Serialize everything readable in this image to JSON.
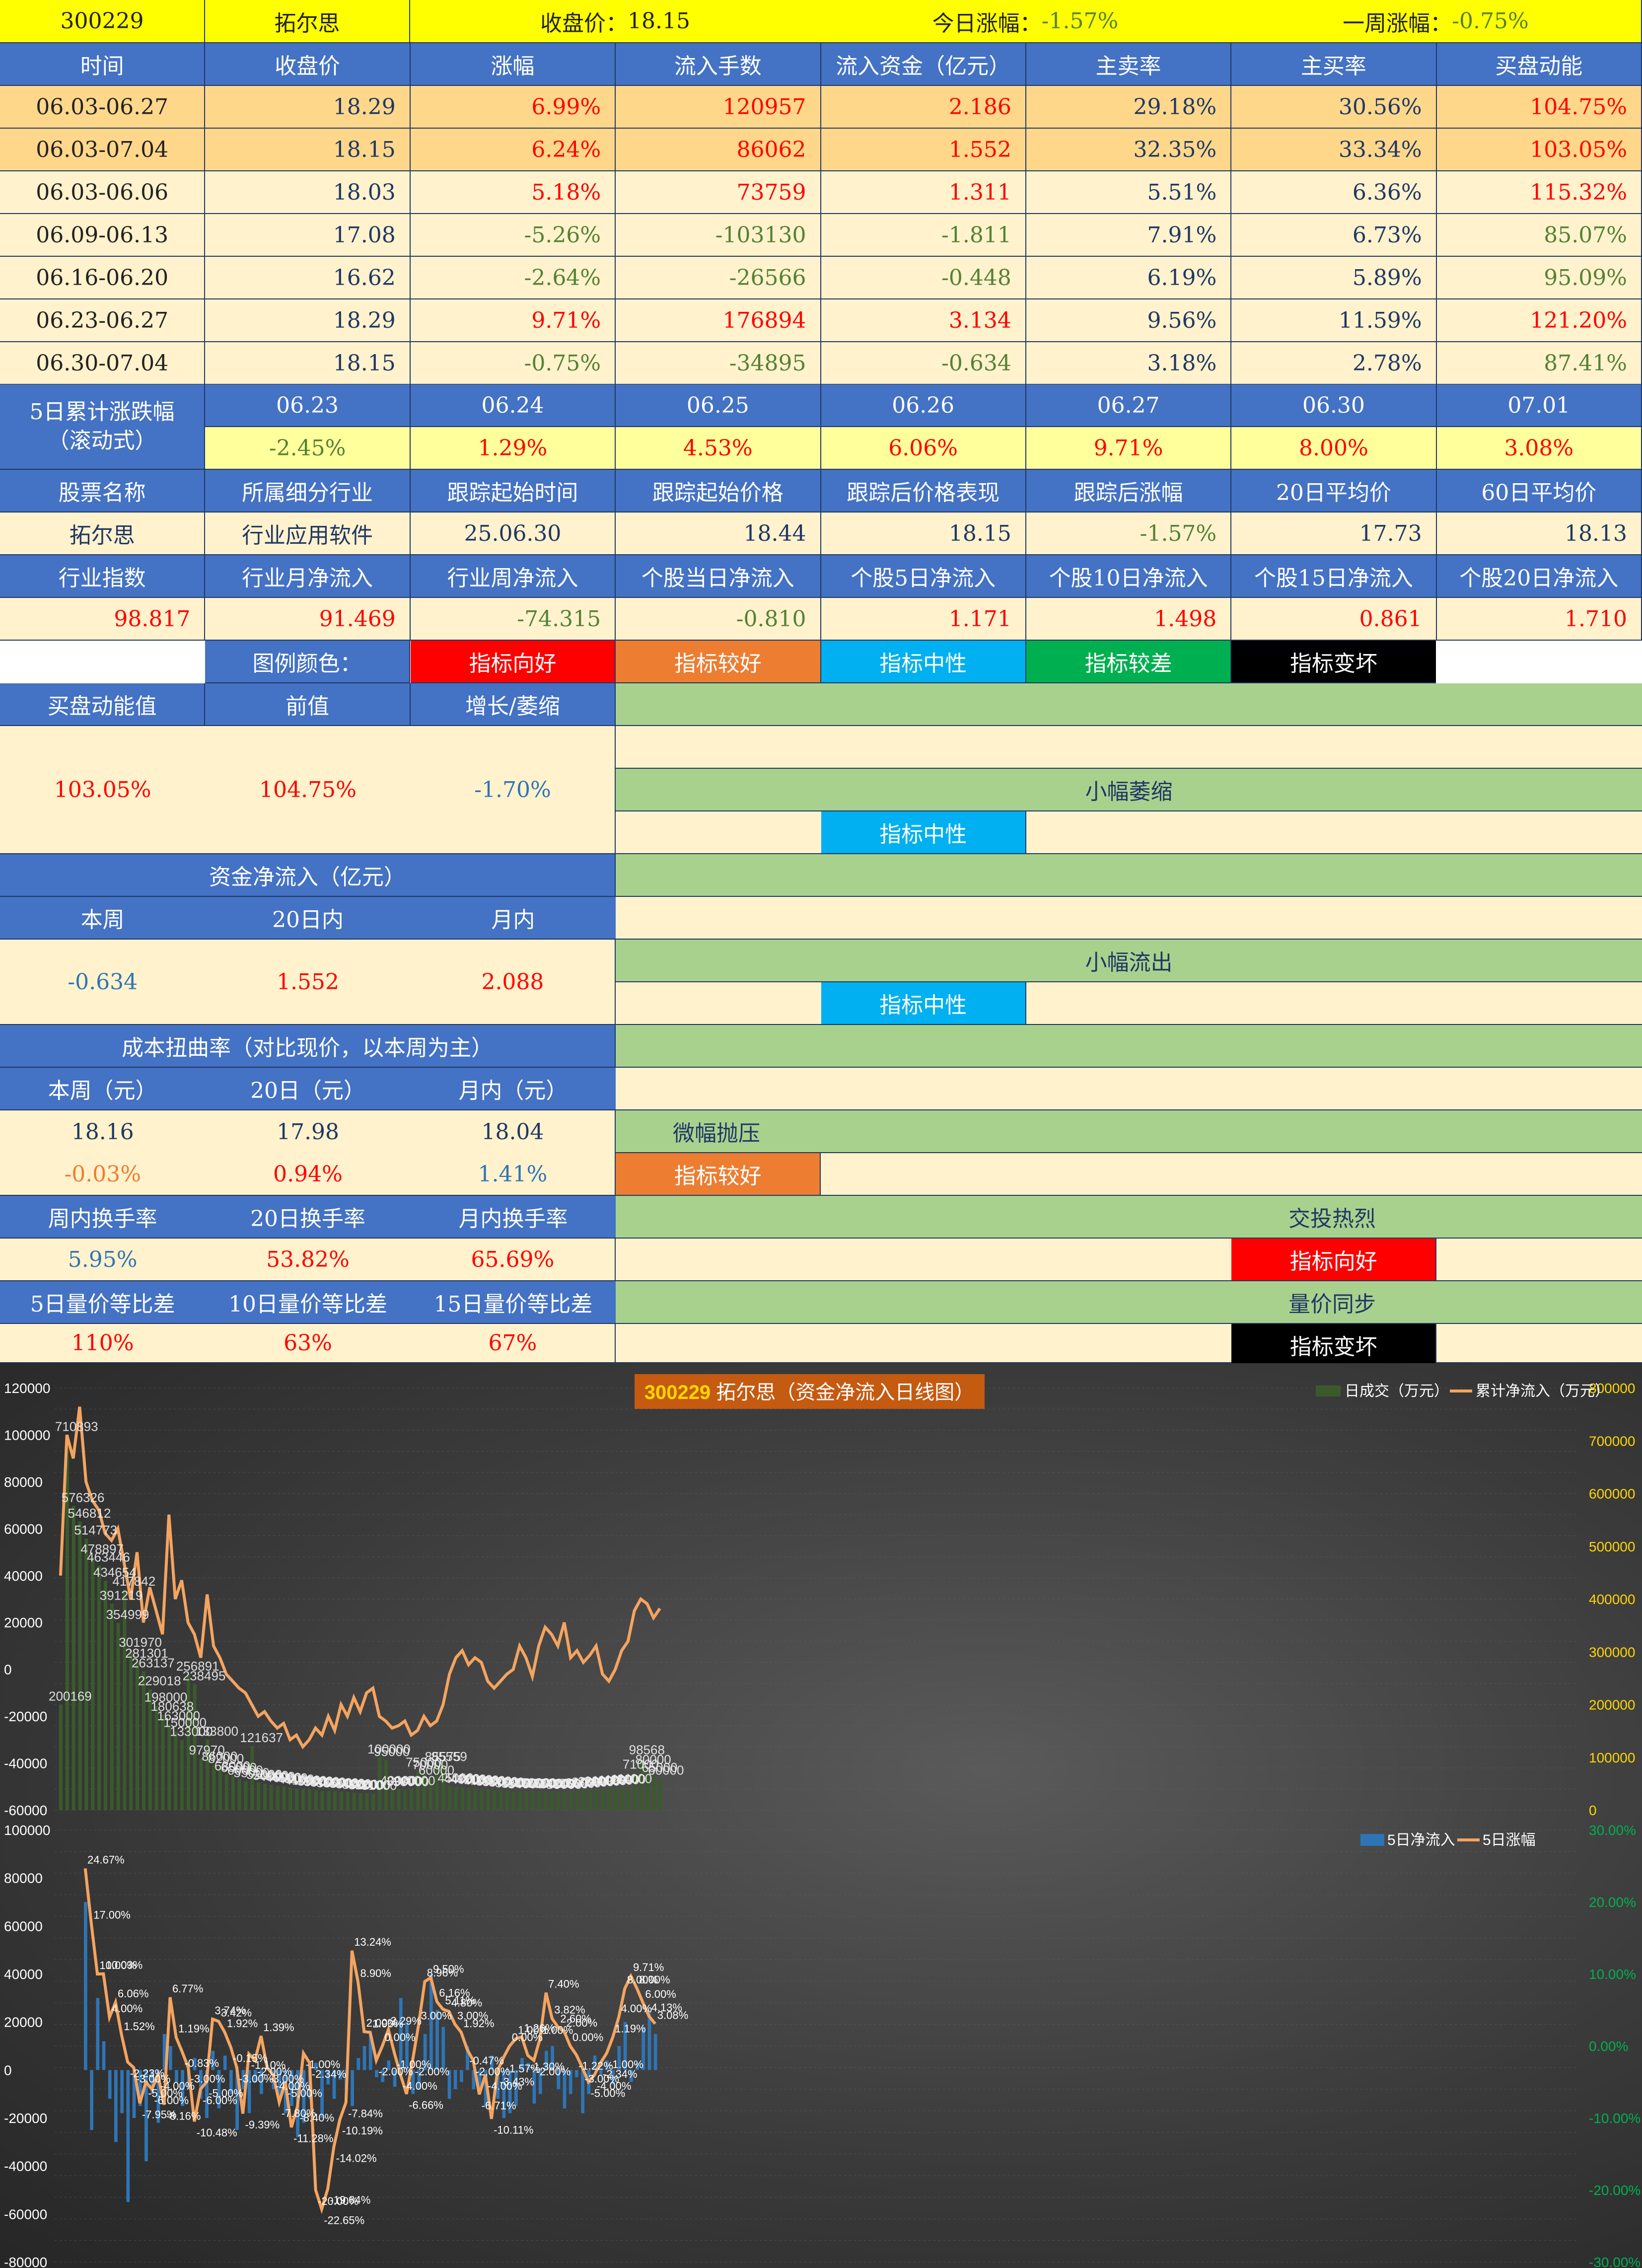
{
  "header": {
    "code": "300229",
    "name": "拓尔思",
    "close_label": "收盘价：",
    "close_value": "18.15",
    "day_label": "今日涨幅：",
    "day_value": "-1.57%",
    "week_label": "一周涨幅：",
    "week_value": "-0.75%"
  },
  "weekly": {
    "columns": [
      "时间",
      "收盘价",
      "涨幅",
      "流入手数",
      "流入资金（亿元）",
      "主卖率",
      "主买率",
      "买盘动能"
    ],
    "rows": [
      [
        "06.03-06.27",
        "18.29",
        "6.99%",
        "120957",
        "2.186",
        "29.18%",
        "30.56%",
        "104.75%"
      ],
      [
        "06.03-07.04",
        "18.15",
        "6.24%",
        "86062",
        "1.552",
        "32.35%",
        "33.34%",
        "103.05%"
      ],
      [
        "06.03-06.06",
        "18.03",
        "5.18%",
        "73759",
        "1.311",
        "5.51%",
        "6.36%",
        "115.32%"
      ],
      [
        "06.09-06.13",
        "17.08",
        "-5.26%",
        "-103130",
        "-1.811",
        "7.91%",
        "6.73%",
        "85.07%"
      ],
      [
        "06.16-06.20",
        "16.62",
        "-2.64%",
        "-26566",
        "-0.448",
        "6.19%",
        "5.89%",
        "95.09%"
      ],
      [
        "06.23-06.27",
        "18.29",
        "9.71%",
        "176894",
        "3.134",
        "9.56%",
        "11.59%",
        "121.20%"
      ],
      [
        "06.30-07.04",
        "18.15",
        "-0.75%",
        "-34895",
        "-0.634",
        "3.18%",
        "2.78%",
        "87.41%"
      ]
    ]
  },
  "rolling": {
    "label_line1": "5日累计涨跌幅",
    "label_line2": "（滚动式）",
    "dates": [
      "06.23",
      "06.24",
      "06.25",
      "06.26",
      "06.27",
      "06.30",
      "07.01"
    ],
    "values": [
      "-2.45%",
      "1.29%",
      "4.53%",
      "6.06%",
      "9.71%",
      "8.00%",
      "3.08%"
    ]
  },
  "info": {
    "headers": [
      "股票名称",
      "所属细分行业",
      "跟踪起始时间",
      "跟踪起始价格",
      "跟踪后价格表现",
      "跟踪后涨幅",
      "20日平均价",
      "60日平均价"
    ],
    "values": [
      "拓尔思",
      "行业应用软件",
      "25.06.30",
      "18.44",
      "18.15",
      "-1.57%",
      "17.73",
      "18.13"
    ]
  },
  "flows": {
    "headers": [
      "行业指数",
      "行业月净流入",
      "行业周净流入",
      "个股当日净流入",
      "个股5日净流入",
      "个股10日净流入",
      "个股15日净流入",
      "个股20日净流入"
    ],
    "values": [
      "98.817",
      "91.469",
      "-74.315",
      "-0.810",
      "1.171",
      "1.498",
      "0.861",
      "1.710"
    ]
  },
  "legend": {
    "title": "图例颜色：",
    "items": [
      {
        "label": "指标向好",
        "color": "#ff0000"
      },
      {
        "label": "指标较好",
        "color": "#ed7d31"
      },
      {
        "label": "指标中性",
        "color": "#00b0f0"
      },
      {
        "label": "指标较差",
        "color": "#00b050"
      },
      {
        "label": "指标变坏",
        "color": "#000000"
      }
    ]
  },
  "momentum": {
    "headers": [
      "买盘动能值",
      "前值",
      "增长/萎缩"
    ],
    "values": [
      "103.05%",
      "104.75%",
      "-1.70%"
    ],
    "status": "小幅萎缩",
    "tag": "指标中性"
  },
  "capital": {
    "title": "资金净流入（亿元）",
    "headers": [
      "本周",
      "20日内",
      "月内"
    ],
    "values": [
      "-0.634",
      "1.552",
      "2.088"
    ],
    "status": "小幅流出",
    "tag": "指标中性"
  },
  "cost": {
    "title": "成本扭曲率（对比现价，以本周为主）",
    "headers": [
      "本周（元）",
      "20日（元）",
      "月内（元）"
    ],
    "values": [
      "18.16",
      "17.98",
      "18.04"
    ],
    "pcts": [
      "-0.03%",
      "0.94%",
      "1.41%"
    ],
    "status": "微幅抛压",
    "tag": "指标较好"
  },
  "turnover": {
    "headers": [
      "周内换手率",
      "20日换手率",
      "月内换手率"
    ],
    "values": [
      "5.95%",
      "53.82%",
      "65.69%"
    ],
    "status": "交投热烈",
    "tag": "指标向好"
  },
  "volprice": {
    "headers": [
      "5日量价等比差",
      "10日量价等比差",
      "15日量价等比差"
    ],
    "values": [
      "110%",
      "63%",
      "67%"
    ],
    "status": "量价同步",
    "tag": "指标变坏"
  },
  "chart1": {
    "title_code": "300229",
    "title_rest": "拓尔思（资金净流入日线图）",
    "legend": [
      "日成交（万元）",
      "累计净流入（万元）"
    ]
  },
  "chart2": {
    "legend": [
      "5日净流入",
      "5日涨幅"
    ]
  },
  "chart_data": [
    {
      "type": "bar",
      "title": "300229 拓尔思（资金净流入日线图）",
      "left_axis": {
        "min": -60000,
        "max": 120000,
        "ticks": [
          "120000",
          "100000",
          "80000",
          "60000",
          "40000",
          "20000",
          "0",
          "-20000",
          "-40000",
          "-60000"
        ]
      },
      "right_axis": {
        "min": 0,
        "max": 800000,
        "ticks": [
          "800000",
          "700000",
          "600000",
          "500000",
          "400000",
          "300000",
          "200000",
          "100000",
          "0"
        ]
      },
      "series": [
        {
          "name": "日成交（万元）",
          "axis": "right",
          "values": [
            200169,
            710893,
            576326,
            546812,
            514773,
            478897,
            463446,
            434654,
            391219,
            354999,
            417842,
            301970,
            281301,
            263137,
            229018,
            198000,
            180638,
            163000,
            150000,
            133000,
            256891,
            238495,
            97970,
            133800,
            86000,
            82000,
            68000,
            65000,
            60000,
            55000,
            121637,
            52000,
            50000,
            48000,
            46000,
            45000,
            43000,
            41000,
            40000,
            39000,
            38000,
            37000,
            36000,
            36000,
            35000,
            34000,
            33000,
            32000,
            32000,
            31000,
            100000,
            95000,
            40000,
            39000,
            38000,
            40000,
            75000,
            70000,
            60000,
            85575,
            85559,
            45000,
            44000,
            43000,
            42000,
            41000,
            40000,
            39000,
            38000,
            37000,
            36000,
            35000,
            34000,
            36000,
            36000,
            35000,
            35000,
            34000,
            33000,
            34000,
            35000,
            36000,
            37000,
            38000,
            39000,
            40000,
            41000,
            42000,
            43000,
            44000,
            71000,
            98568,
            80000,
            65000,
            60000
          ]
        },
        {
          "name": "累计净流入（万元）",
          "axis": "left",
          "values": [
            40000,
            100000,
            90000,
            112000,
            80000,
            72000,
            68000,
            58000,
            55000,
            60000,
            45000,
            30000,
            50000,
            20000,
            35000,
            25000,
            15000,
            66000,
            30000,
            38000,
            20000,
            15000,
            5000,
            32000,
            10000,
            5000,
            -2000,
            -5000,
            -8000,
            -10000,
            -15000,
            -20000,
            -18000,
            -22000,
            -25000,
            -23000,
            -30000,
            -28000,
            -33000,
            -30000,
            -25000,
            -28000,
            -20000,
            -26000,
            -15000,
            -20000,
            -12000,
            -18000,
            -10000,
            -8000,
            -20000,
            -22000,
            -25000,
            -24000,
            -22000,
            -28000,
            -26000,
            -20000,
            -24000,
            -22000,
            -15000,
            -2000,
            5000,
            8000,
            2000,
            5000,
            3000,
            -5000,
            -8000,
            -5000,
            -2000,
            0,
            10000,
            5000,
            -3000,
            10000,
            18000,
            15000,
            10000,
            20000,
            5000,
            8000,
            3000,
            6000,
            10000,
            -2000,
            -5000,
            0,
            8000,
            12000,
            25000,
            30000,
            28000,
            22000,
            26000
          ]
        }
      ]
    },
    {
      "type": "bar",
      "left_axis": {
        "min": -80000,
        "max": 100000,
        "ticks": [
          "100000",
          "80000",
          "60000",
          "40000",
          "20000",
          "0",
          "-20000",
          "-40000",
          "-60000",
          "-80000"
        ]
      },
      "right_axis": {
        "min": -30,
        "max": 30,
        "ticks": [
          "30.00%",
          "20.00%",
          "10.00%",
          "0.00%",
          "-10.00%",
          "-20.00%",
          "-30.00%"
        ]
      },
      "series": [
        {
          "name": "5日净流入",
          "axis": "left",
          "values": [
            70000,
            -25000,
            30000,
            12000,
            -12000,
            -30000,
            -18000,
            -55000,
            -20000,
            -15000,
            -38000,
            -10000,
            -22000,
            15000,
            10000,
            -5000,
            -15000,
            -8000,
            5000,
            -12000,
            -20000,
            8000,
            -16000,
            6000,
            -10000,
            -25000,
            -8000,
            -18000,
            -5000,
            -10000,
            2000,
            -8000,
            -12000,
            -18000,
            -15000,
            -28000,
            -22000,
            -12000,
            3000,
            -20000,
            -6000,
            -12000,
            -4000,
            -8000,
            -15000,
            5000,
            10000,
            15000,
            -3000,
            -5000,
            4000,
            -7000,
            30000,
            20000,
            -10000,
            -8000,
            15000,
            40000,
            25000,
            18000,
            -12000,
            -8000,
            -5000,
            10000,
            -8000,
            -10000,
            -15000,
            6000,
            -12000,
            -20000,
            -18000,
            -15000,
            5000,
            3000,
            -14000,
            -10000,
            8000,
            10000,
            -8000,
            -16000,
            -10000,
            -3000,
            -18000,
            -10000,
            6000,
            -2000,
            4000,
            -6000,
            10000,
            20000,
            -5000,
            3000,
            18000,
            25000,
            15000
          ]
        },
        {
          "name": "5日涨幅",
          "axis": "right",
          "values": [
            24.67,
            17,
            10,
            10.03,
            4,
            6.06,
            1.52,
            -2.23,
            -3,
            -7.95,
            -5,
            -6,
            -4,
            -8.16,
            6.77,
            1.19,
            -0.83,
            -3,
            -10.48,
            -6,
            -5,
            3.74,
            3.42,
            1.92,
            -0.15,
            -3,
            -9.39,
            -1.1,
            -2,
            1.39,
            -3,
            -4,
            -7.8,
            -5,
            -11.28,
            -8.4,
            -1,
            -2.34,
            -20,
            -22.65,
            -19.84,
            -14.02,
            -10.19,
            -7.84,
            13.24,
            8.9,
            2,
            1.9,
            -2,
            0,
            2.29,
            -1,
            -4,
            -6.66,
            -2,
            3,
            8.96,
            9.5,
            6.16,
            5.11,
            4.8,
            3,
            1.92,
            -0.47,
            -2,
            -6.71,
            -4,
            -10.11,
            -3.43,
            -1.57,
            0,
            1,
            1.26,
            -1.3,
            -2,
            1,
            7.4,
            3.82,
            2.6,
            2,
            0,
            -1.22,
            -3,
            -5,
            -4,
            -2.34,
            -1,
            1.19,
            4,
            8,
            9.71,
            8,
            6,
            4.13,
            3.08
          ]
        }
      ]
    }
  ]
}
